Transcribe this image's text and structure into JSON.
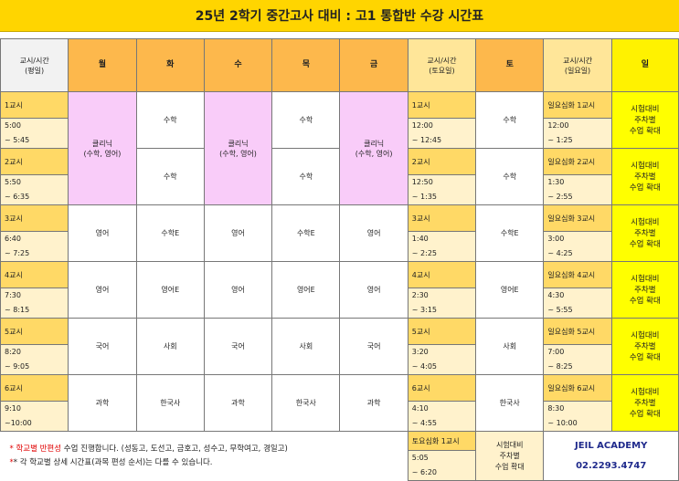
{
  "title": "25년 2학기 중간고사 대비 : 고1 통합반 수강 시간표",
  "headers": {
    "weekday_period": "교시/시간\n(평일)",
    "days": [
      "월",
      "화",
      "수",
      "목",
      "금"
    ],
    "sat_period": "교시/시간\n(토요일)",
    "sat": "토",
    "sun_period": "교시/시간\n(일요일)",
    "sun": "일"
  },
  "periods": [
    {
      "label": "1교시",
      "time": "5:00\n~ 5:45",
      "sat_label": "1교시",
      "sat_time": "12:00\n~ 12:45",
      "sun_label": "일요심화 1교시",
      "sun_time": "12:00\n~ 1:25"
    },
    {
      "label": "2교시",
      "time": "5:50\n~ 6:35",
      "sat_label": "2교시",
      "sat_time": "12:50\n~ 1:35",
      "sun_label": "일요심화 2교시",
      "sun_time": "1:30\n~ 2:55"
    },
    {
      "label": "3교시",
      "time": "6:40\n~ 7:25",
      "sat_label": "3교시",
      "sat_time": "1:40\n~ 2:25",
      "sun_label": "일요심화 3교시",
      "sun_time": "3:00\n~ 4:25"
    },
    {
      "label": "4교시",
      "time": "7:30\n~ 8:15",
      "sat_label": "4교시",
      "sat_time": "2:30\n~ 3:15",
      "sun_label": "일요심화 4교시",
      "sun_time": "4:30\n~ 5:55"
    },
    {
      "label": "5교시",
      "time": "8:20\n~ 9:05",
      "sat_label": "5교시",
      "sat_time": "3:20\n~ 4:05",
      "sun_label": "일요심화 5교시",
      "sun_time": "7:00\n~ 8:25"
    },
    {
      "label": "6교시",
      "time": "9:10\n~10:00",
      "sat_label": "6교시",
      "sat_time": "4:10\n~ 4:55",
      "sun_label": "일요심화 6교시",
      "sun_time": "8:30\n~ 10:00"
    }
  ],
  "subjects": {
    "clinic": "클리닉\n(수학, 영어)",
    "math": "수학",
    "math_e": "수학E",
    "english": "영어",
    "english_e": "영어E",
    "korean": "국어",
    "social": "사회",
    "science": "과학",
    "korean_history": "한국사",
    "exam_prep": "시험대비\n주차별\n수업 확대"
  },
  "sat_extra": {
    "label": "토요심화 1교시",
    "time": "5:05\n~ 6:20",
    "subject": "시험대비\n주차별\n수업 확대"
  },
  "notes": {
    "line1_star": "* ",
    "line1_red": "학교별 반편성",
    "line1_rest": " 수업 진행합니다. (성동고, 도선고, 금호고, 성수고, 무학여고, 경일고)",
    "line2": "* 각 학교별 상세 시간표(과목 편성 순서)는 다를 수 있습니다."
  },
  "academy": {
    "name": "JEIL ACADEMY",
    "phone": "02.2293.4747"
  }
}
